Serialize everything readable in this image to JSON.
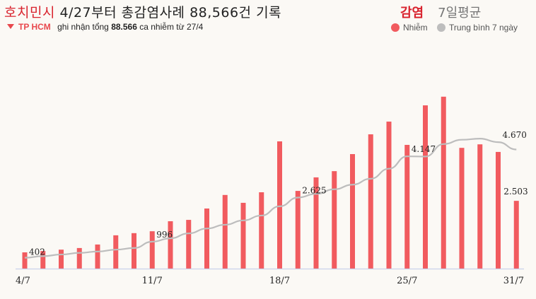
{
  "header": {
    "title_city": "호치민시",
    "title_rest": "4/27부터 총감염사례 88,566건 기록",
    "subtitle_location": "TP HCM",
    "subtitle_pre": "ghi nhận tổng",
    "subtitle_value": "88.566",
    "subtitle_post": "ca nhiễm từ 27/4"
  },
  "legend": {
    "title_cases": "감염",
    "title_avg": "7일평균",
    "items": [
      {
        "label": "Nhiễm",
        "color": "#f15b5f"
      },
      {
        "label": "Trung bình 7 ngày",
        "color": "#bdbdbd"
      }
    ]
  },
  "colors": {
    "bar": "#f15b5f",
    "line": "#bdbdbd",
    "axis": "#c9d3ea",
    "accent": "#d9232e"
  },
  "chart_data": {
    "type": "bar",
    "title": "호치민시 4/27부터 총감염사례 88,566건 기록",
    "subtitle": "TP HCM ghi nhận tổng 88.566 ca nhiễm từ 27/4",
    "xlabel": "",
    "ylabel": "",
    "categories": [
      "4/7",
      "5/7",
      "6/7",
      "7/7",
      "8/7",
      "9/7",
      "10/7",
      "11/7",
      "12/7",
      "13/7",
      "14/7",
      "15/7",
      "16/7",
      "17/7",
      "18/7",
      "19/7",
      "20/7",
      "21/7",
      "22/7",
      "23/7",
      "24/7",
      "25/7",
      "26/7",
      "27/7",
      "28/7",
      "29/7",
      "30/7",
      "31/7"
    ],
    "tick_labels": [
      "4/7",
      "11/7",
      "18/7",
      "25/7",
      "31/7"
    ],
    "series": [
      {
        "name": "Nhiễm",
        "type": "bar",
        "values": [
          600,
          650,
          700,
          760,
          890,
          1230,
          1310,
          1380,
          1750,
          1800,
          2220,
          2720,
          2430,
          2820,
          4700,
          2870,
          3370,
          3600,
          4230,
          4960,
          5430,
          4570,
          6030,
          6350,
          4460,
          4590,
          4310,
          2503
        ]
      },
      {
        "name": "Trung bình 7 ngày",
        "type": "line",
        "values": [
          402,
          460,
          520,
          580,
          630,
          700,
          760,
          996,
          1120,
          1300,
          1480,
          1620,
          1780,
          1960,
          2300,
          2625,
          2760,
          2930,
          3100,
          3320,
          3690,
          4147,
          4140,
          4600,
          4760,
          4800,
          4670,
          4400
        ]
      }
    ],
    "annotations": [
      {
        "index": 0,
        "series": "Trung bình 7 ngày",
        "text": "402"
      },
      {
        "index": 7,
        "series": "Trung bình 7 ngày",
        "text": "996"
      },
      {
        "index": 15,
        "series": "Trung bình 7 ngày",
        "text": "2.625"
      },
      {
        "index": 21,
        "series": "Trung bình 7 ngày",
        "text": "4.147"
      },
      {
        "index": 26,
        "series": "Trung bình 7 ngày",
        "text": "4.670"
      },
      {
        "index": 27,
        "series": "Nhiễm",
        "text": "2.503"
      }
    ],
    "ylim": [
      0,
      6500
    ],
    "grid": false,
    "legend_position": "top-right"
  }
}
